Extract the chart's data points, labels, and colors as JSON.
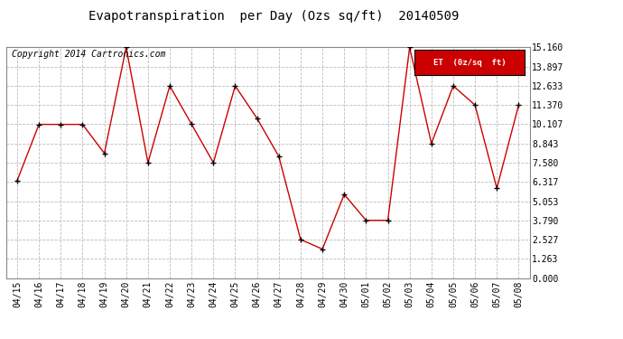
{
  "title": "Evapotranspiration  per Day (Ozs sq/ft)  20140509",
  "copyright": "Copyright 2014 Cartronics.com",
  "legend_label": "ET  (0z/sq  ft)",
  "x_labels": [
    "04/15",
    "04/16",
    "04/17",
    "04/18",
    "04/19",
    "04/20",
    "04/21",
    "04/22",
    "04/23",
    "04/24",
    "04/25",
    "04/26",
    "04/27",
    "04/28",
    "04/29",
    "04/30",
    "05/01",
    "05/02",
    "05/03",
    "05/04",
    "05/05",
    "05/06",
    "05/07",
    "05/08"
  ],
  "y_values": [
    6.4,
    10.1,
    10.1,
    10.1,
    8.2,
    15.16,
    7.58,
    12.633,
    10.107,
    7.58,
    12.633,
    10.5,
    8.0,
    2.527,
    1.9,
    5.5,
    3.79,
    3.79,
    15.16,
    8.843,
    12.633,
    11.37,
    5.9,
    11.37
  ],
  "y_ticks": [
    0.0,
    1.263,
    2.527,
    3.79,
    5.053,
    6.317,
    7.58,
    8.843,
    10.107,
    11.37,
    12.633,
    13.897,
    15.16
  ],
  "y_tick_labels": [
    "0.000",
    "1.263",
    "2.527",
    "3.790",
    "5.053",
    "6.317",
    "7.580",
    "8.843",
    "10.107",
    "11.370",
    "12.633",
    "13.897",
    "15.160"
  ],
  "ylim": [
    0,
    15.16
  ],
  "line_color": "#cc0000",
  "marker_color": "#000000",
  "bg_color": "#ffffff",
  "grid_color": "#bbbbbb",
  "title_fontsize": 10,
  "copyright_fontsize": 7,
  "tick_fontsize": 7,
  "legend_bg": "#cc0000",
  "legend_text_color": "#ffffff"
}
